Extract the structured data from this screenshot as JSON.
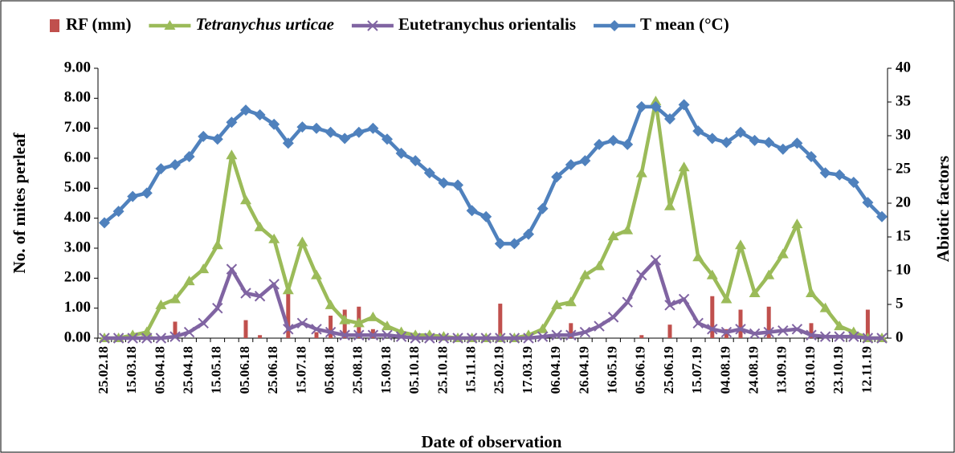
{
  "chart_data": {
    "type": "bar-line",
    "y_label": "No. of mites perleaf",
    "y2_label": "Abiotic factors",
    "x_label": "Date of observation",
    "categories": [
      "25.02.18",
      null,
      "15.03.18",
      null,
      "05.04.18",
      null,
      "25.04.18",
      null,
      "15.05.18",
      null,
      "05.06.18",
      null,
      "25.06.18",
      null,
      "15.07.18",
      null,
      "05.08.18",
      null,
      "25.08.18",
      null,
      "15.09.18",
      null,
      "05.10.18",
      null,
      "25.10.18",
      null,
      "15.11.18",
      null,
      "25.02.19",
      null,
      "17.03.19",
      null,
      "06.04.19",
      null,
      "26.04.19",
      null,
      "16.05.19",
      null,
      "05.06.19",
      null,
      "25.06.19",
      null,
      "15.07.19",
      null,
      "04.08.19",
      null,
      "24.08.19",
      null,
      "13.09.19",
      null,
      "03.10.19",
      null,
      "23.10.19",
      null,
      "12.11.19",
      null
    ],
    "ylim": [
      0,
      9
    ],
    "yticks": [
      {
        "value": 0,
        "label": "0.00"
      },
      {
        "value": 1,
        "label": "1.00"
      },
      {
        "value": 2,
        "label": "2.00"
      },
      {
        "value": 3,
        "label": "3.00"
      },
      {
        "value": 4,
        "label": "4.00"
      },
      {
        "value": 5,
        "label": "5.00"
      },
      {
        "value": 6,
        "label": "6.00"
      },
      {
        "value": 7,
        "label": "7.00"
      },
      {
        "value": 8,
        "label": "8.00"
      },
      {
        "value": 9,
        "label": "9.00"
      }
    ],
    "y2lim": [
      0,
      40
    ],
    "y2ticks": [
      0,
      5,
      10,
      15,
      20,
      25,
      30,
      35,
      40
    ],
    "legend": "top",
    "series": [
      {
        "name": "RF (mm)",
        "kind": "bar",
        "color": "#c0504d",
        "values": [
          0,
          0,
          0,
          0,
          0,
          0.55,
          0,
          0,
          0,
          0,
          0.6,
          0.1,
          0,
          1.5,
          0,
          0.2,
          0.75,
          0.95,
          1.05,
          0.3,
          0,
          0,
          0,
          0,
          0,
          0,
          0,
          0,
          1.15,
          0,
          0,
          0,
          0,
          0.5,
          0,
          0,
          0,
          0,
          0.1,
          0,
          0.45,
          0,
          0,
          1.4,
          0.3,
          0.95,
          0,
          1.05,
          0,
          0,
          0.5,
          0,
          0,
          0,
          0.95,
          0
        ]
      },
      {
        "name": "Tetranychus urticae",
        "kind": "line",
        "marker": "triangle",
        "color": "#9bbb59",
        "values": [
          0,
          0,
          0.1,
          0.2,
          1.1,
          1.3,
          1.9,
          2.3,
          3.1,
          6.1,
          4.6,
          3.7,
          3.3,
          1.6,
          3.2,
          2.1,
          1.1,
          0.6,
          0.5,
          0.7,
          0.4,
          0.2,
          0.1,
          0.1,
          0.05,
          0,
          0,
          0,
          0,
          0,
          0.1,
          0.3,
          1.1,
          1.2,
          2.1,
          2.4,
          3.4,
          3.6,
          5.5,
          7.9,
          4.4,
          5.7,
          2.7,
          2.1,
          1.3,
          3.1,
          1.5,
          2.1,
          2.8,
          3.8,
          1.5,
          1.0,
          0.4,
          0.2,
          0,
          0
        ]
      },
      {
        "name": "Eutetranychus orientalis",
        "kind": "line",
        "marker": "cross",
        "color": "#8064a2",
        "values": [
          0,
          0,
          0,
          0,
          0,
          0.05,
          0.2,
          0.5,
          1.0,
          2.3,
          1.5,
          1.4,
          1.8,
          0.3,
          0.5,
          0.3,
          0.2,
          0.1,
          0.1,
          0.1,
          0.1,
          0.05,
          0,
          0,
          0,
          0,
          0,
          0,
          0,
          0,
          0,
          0.05,
          0.1,
          0.1,
          0.2,
          0.4,
          0.7,
          1.2,
          2.1,
          2.6,
          1.1,
          1.3,
          0.5,
          0.3,
          0.2,
          0.3,
          0.15,
          0.2,
          0.25,
          0.3,
          0.1,
          0.05,
          0.05,
          0.05,
          0,
          0
        ]
      },
      {
        "name": "T mean (°C)",
        "kind": "line",
        "marker": "diamond",
        "axis": "y2",
        "color": "#4f81bd",
        "values": [
          17.1,
          18.8,
          21,
          21.5,
          25.1,
          25.7,
          26.9,
          29.9,
          29.5,
          32,
          33.8,
          33.1,
          31.7,
          28.9,
          31.3,
          31.1,
          30.5,
          29.6,
          30.5,
          31.1,
          29.5,
          27.4,
          26.3,
          24.5,
          23,
          22.7,
          18.9,
          18,
          14,
          14,
          15.4,
          19.2,
          23.9,
          25.7,
          26.3,
          28.7,
          29.3,
          28.7,
          34.3,
          34.3,
          32.5,
          34.6,
          30.7,
          29.6,
          29,
          30.5,
          29.3,
          29,
          28,
          28.9,
          26.9,
          24.5,
          24.2,
          23.1,
          20.1,
          18
        ]
      }
    ]
  }
}
